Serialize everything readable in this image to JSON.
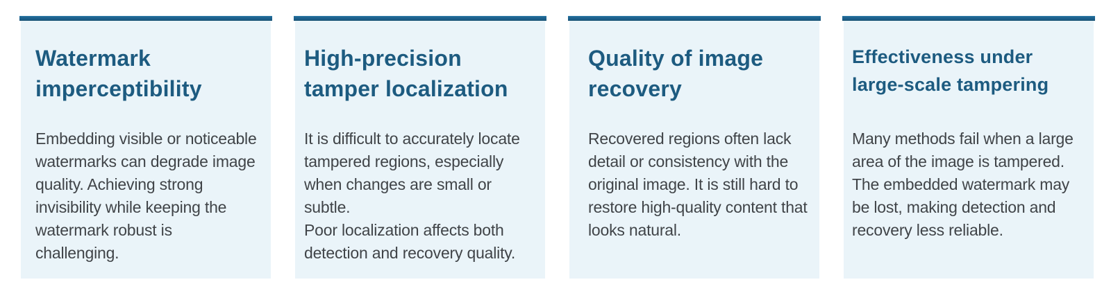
{
  "theme": {
    "page_background": "#ffffff",
    "card_background": "#eaf4f9",
    "heading_color": "#1d5b80",
    "body_color": "#404448",
    "bar_top": "#2f7eac",
    "bar_mid": "#1c608c",
    "bar_bottom": "#114a6a"
  },
  "cards": [
    {
      "id": "watermark-imperceptibility",
      "title_lines": [
        "Watermark",
        "imperceptibility"
      ],
      "body_lines": [
        "Embedding visible or noticeable",
        "watermarks can degrade image",
        "quality. Achieving strong",
        "invisibility while keeping the",
        "watermark robust is challenging."
      ]
    },
    {
      "id": "high-precision-tamper-localization",
      "title_lines": [
        "High-precision",
        "tamper localization"
      ],
      "body_lines": [
        "It is difficult to accurately locate",
        "tampered regions, especially",
        "when changes are small or subtle.",
        "Poor localization affects both",
        "detection and recovery quality."
      ]
    },
    {
      "id": "quality-of-image-recovery",
      "title_lines": [
        "Quality of image",
        "recovery"
      ],
      "body_lines": [
        "Recovered regions often lack",
        "detail or consistency with the",
        "original image. It is still hard to",
        "restore high-quality content that",
        "looks natural."
      ]
    },
    {
      "id": "effectiveness-under-large-scale-tampering",
      "title_lines": [
        "Effectiveness under",
        "large-scale tampering"
      ],
      "body_lines": [
        "Many methods fail when a large",
        "area of the image is tampered.",
        "The embedded watermark may",
        "be lost, making detection and",
        "recovery less reliable."
      ]
    }
  ]
}
